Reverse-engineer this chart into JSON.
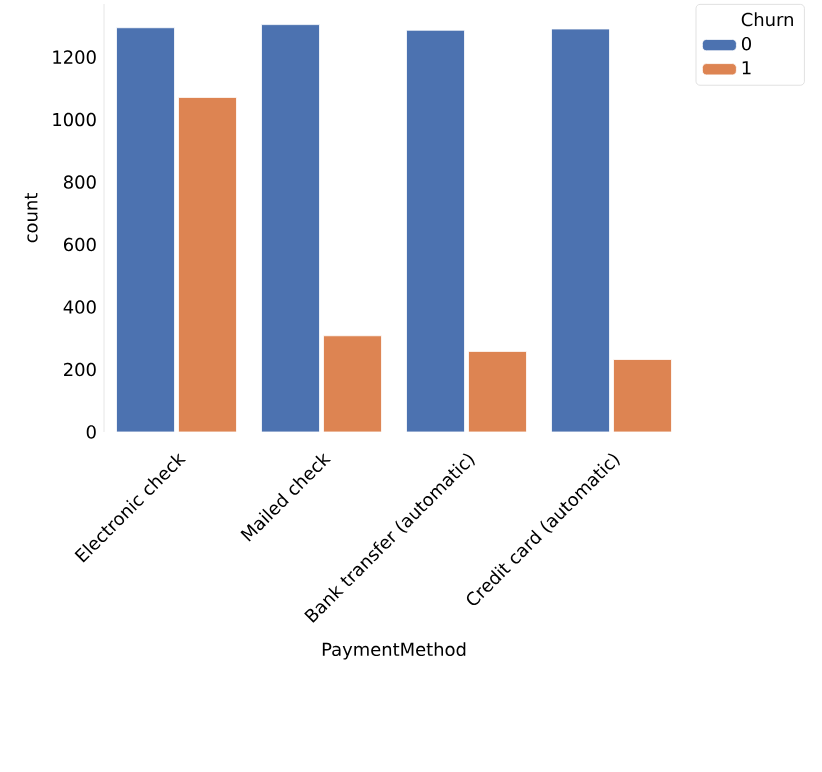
{
  "chart_data": {
    "type": "bar",
    "xlabel": "PaymentMethod",
    "ylabel": "count",
    "legend_title": "Churn",
    "categories": [
      "Electronic check",
      "Mailed check",
      "Bank transfer (automatic)",
      "Credit card (automatic)"
    ],
    "series": [
      {
        "name": "0",
        "color": "#4c72b0",
        "values": [
          1294,
          1304,
          1286,
          1290
        ]
      },
      {
        "name": "1",
        "color": "#dd8452",
        "values": [
          1071,
          308,
          258,
          232
        ]
      }
    ],
    "ylim": [
      0,
      1370
    ],
    "yticks": [
      0,
      200,
      400,
      600,
      800,
      1000,
      1200
    ],
    "legend": "top right"
  }
}
